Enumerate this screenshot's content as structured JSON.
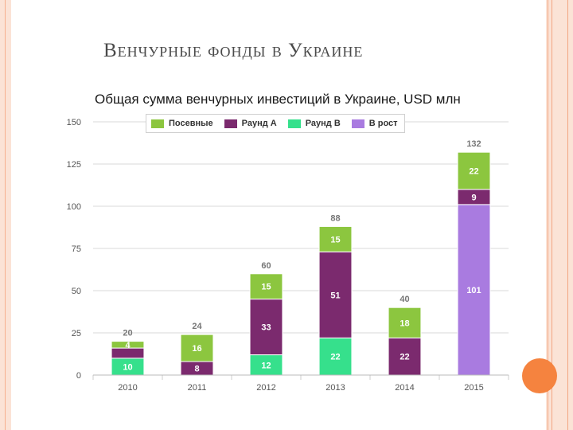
{
  "slide": {
    "title": "Венчурные фонды в Украине"
  },
  "colors": {
    "seed": "#8cc63f",
    "round_a": "#7b2a6e",
    "round_b": "#36e08c",
    "growth": "#a97be0",
    "accent": "#f5833f"
  },
  "chart_data": {
    "type": "bar",
    "stacked": true,
    "title": "Общая сумма венчурных инвестиций в Украине, USD млн",
    "xlabel": "",
    "ylabel": "",
    "ylim": [
      0,
      150
    ],
    "yticks": [
      0,
      25,
      50,
      75,
      100,
      125,
      150
    ],
    "grid": true,
    "legend_position": "top",
    "categories": [
      "2010",
      "2011",
      "2012",
      "2013",
      "2014",
      "2015"
    ],
    "series": [
      {
        "name": "Посевные",
        "values": [
          4,
          16,
          15,
          15,
          18,
          22
        ],
        "labels": [
          "4",
          "16",
          "15",
          "15",
          "18",
          "22"
        ]
      },
      {
        "name": "Раунд А",
        "values": [
          6,
          8,
          33,
          51,
          22,
          9
        ],
        "labels": [
          "",
          "8",
          "33",
          "51",
          "22",
          "9"
        ]
      },
      {
        "name": "Раунд В",
        "values": [
          10,
          0,
          12,
          22,
          0,
          0
        ],
        "labels": [
          "10",
          "",
          "12",
          "22",
          "",
          ""
        ]
      },
      {
        "name": "В рост",
        "values": [
          0,
          0,
          0,
          0,
          0,
          101
        ],
        "labels": [
          "",
          "",
          "",
          "",
          "",
          "101"
        ]
      }
    ],
    "totals": [
      "20",
      "24",
      "60",
      "88",
      "40",
      "132"
    ]
  }
}
